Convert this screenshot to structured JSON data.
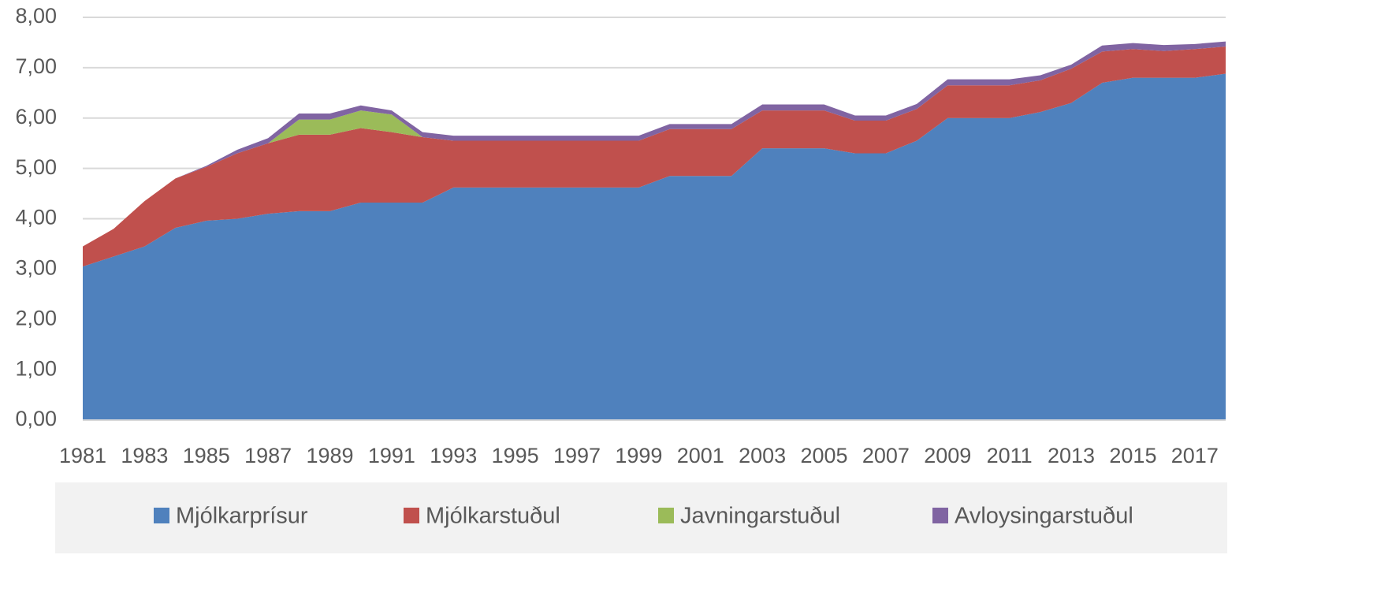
{
  "chart_data": {
    "type": "stacked_area",
    "categories": [
      "1981",
      null,
      "1983",
      null,
      "1985",
      null,
      "1987",
      null,
      "1989",
      null,
      "1991",
      null,
      "1993",
      null,
      "1995",
      null,
      "1997",
      null,
      "1999",
      null,
      "2001",
      null,
      "2003",
      null,
      "2005",
      null,
      "2007",
      null,
      "2009",
      null,
      "2011",
      null,
      "2013",
      null,
      "2015",
      null,
      "2017",
      null
    ],
    "series": [
      {
        "name": "Mjólkarprísur",
        "color": "#4f81bd",
        "values": [
          3.05,
          3.25,
          3.45,
          3.82,
          3.96,
          4.0,
          4.1,
          4.15,
          4.15,
          4.32,
          4.32,
          4.32,
          4.62,
          4.62,
          4.62,
          4.62,
          4.62,
          4.62,
          4.62,
          4.85,
          4.85,
          4.85,
          5.4,
          5.4,
          5.4,
          5.3,
          5.3,
          5.55,
          6.0,
          6.0,
          6.0,
          6.12,
          6.3,
          6.7,
          6.8,
          6.8,
          6.8,
          6.88
        ]
      },
      {
        "name": "Mjólkarstuðul",
        "color": "#c0504d",
        "values": [
          0.4,
          0.55,
          0.9,
          0.98,
          1.07,
          1.3,
          1.4,
          1.52,
          1.52,
          1.48,
          1.4,
          1.3,
          0.93,
          0.93,
          0.93,
          0.93,
          0.93,
          0.93,
          0.93,
          0.93,
          0.93,
          0.93,
          0.75,
          0.75,
          0.75,
          0.65,
          0.65,
          0.63,
          0.65,
          0.65,
          0.65,
          0.63,
          0.68,
          0.62,
          0.57,
          0.53,
          0.57,
          0.54
        ]
      },
      {
        "name": "Javningarstuðul",
        "color": "#9bbb59",
        "values": [
          0,
          0,
          0,
          0,
          0,
          0,
          0,
          0.3,
          0.3,
          0.35,
          0.35,
          0,
          0,
          0,
          0,
          0,
          0,
          0,
          0,
          0,
          0,
          0,
          0,
          0,
          0,
          0,
          0,
          0,
          0,
          0,
          0,
          0,
          0,
          0,
          0,
          0,
          0,
          0
        ]
      },
      {
        "name": "Avloysingarstuðul",
        "color": "#8064a2",
        "values": [
          0,
          0,
          0,
          0,
          0.02,
          0.07,
          0.1,
          0.12,
          0.12,
          0.1,
          0.08,
          0.1,
          0.1,
          0.1,
          0.1,
          0.1,
          0.1,
          0.1,
          0.1,
          0.1,
          0.1,
          0.1,
          0.12,
          0.12,
          0.12,
          0.1,
          0.1,
          0.1,
          0.12,
          0.12,
          0.12,
          0.1,
          0.08,
          0.12,
          0.12,
          0.12,
          0.1,
          0.1
        ]
      }
    ],
    "ylim": [
      0,
      8
    ],
    "yticks": [
      {
        "value": 0,
        "label": "0,00"
      },
      {
        "value": 1,
        "label": "1,00"
      },
      {
        "value": 2,
        "label": "2,00"
      },
      {
        "value": 3,
        "label": "3,00"
      },
      {
        "value": 4,
        "label": "4,00"
      },
      {
        "value": 5,
        "label": "5,00"
      },
      {
        "value": 6,
        "label": "6,00"
      },
      {
        "value": 7,
        "label": "7,00"
      },
      {
        "value": 8,
        "label": "8,00"
      }
    ],
    "grid": true,
    "legend": "bottom"
  }
}
